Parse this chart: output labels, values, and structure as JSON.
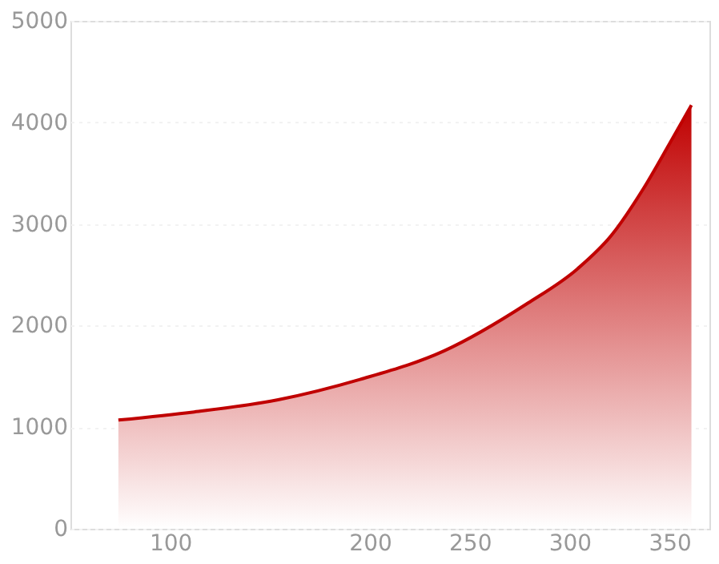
{
  "chart_data": {
    "type": "area",
    "x": [
      74,
      112,
      154,
      195,
      237,
      279,
      304,
      321,
      337,
      350,
      361
    ],
    "series": [
      {
        "color": "#c00000",
        "values": [
          1070,
          1150,
          1270,
          1470,
          1750,
          2220,
          2560,
          2890,
          3350,
          3790,
          4170
        ]
      }
    ],
    "xlim": [
      50,
      370
    ],
    "xticks": [
      100,
      200,
      250,
      300,
      350
    ],
    "ylim": [
      0,
      5000
    ],
    "yticks": [
      0,
      1000,
      2000,
      3000,
      4000,
      5000
    ],
    "grid": "y"
  }
}
